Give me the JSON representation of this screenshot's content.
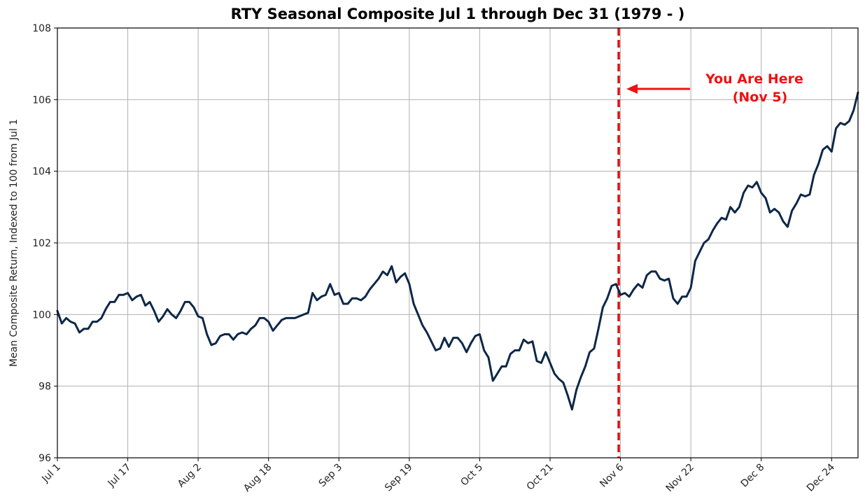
{
  "chart_data": {
    "type": "line",
    "title": "RTY Seasonal Composite Jul 1 through Dec 31 (1979 - )",
    "xlabel": "",
    "ylabel": "Mean Composite Return, Indexed to 100 from Jul 1",
    "ylim": [
      96,
      108
    ],
    "xlim": [
      0,
      182
    ],
    "grid": true,
    "x_ticks": [
      {
        "day": 0,
        "label": "Jul 1"
      },
      {
        "day": 16,
        "label": "Jul 17"
      },
      {
        "day": 32,
        "label": "Aug 2"
      },
      {
        "day": 48,
        "label": "Aug 18"
      },
      {
        "day": 64,
        "label": "Sep 3"
      },
      {
        "day": 80,
        "label": "Sep 19"
      },
      {
        "day": 96,
        "label": "Oct 5"
      },
      {
        "day": 112,
        "label": "Oct 21"
      },
      {
        "day": 128,
        "label": "Nov 6"
      },
      {
        "day": 144,
        "label": "Nov 22"
      },
      {
        "day": 160,
        "label": "Dec 8"
      },
      {
        "day": 176,
        "label": "Dec 24"
      }
    ],
    "y_ticks": [
      96,
      98,
      100,
      102,
      104,
      106,
      108
    ],
    "series": [
      {
        "name": "RTY Seasonal Composite",
        "color": "#0d2747",
        "x": [
          0,
          1,
          2,
          3,
          4,
          5,
          6,
          7,
          8,
          9,
          10,
          11,
          12,
          13,
          14,
          15,
          16,
          17,
          18,
          19,
          20,
          21,
          22,
          23,
          24,
          25,
          26,
          27,
          28,
          29,
          30,
          31,
          32,
          33,
          34,
          35,
          36,
          37,
          38,
          39,
          40,
          41,
          42,
          43,
          44,
          45,
          46,
          47,
          48,
          49,
          50,
          51,
          52,
          53,
          54,
          55,
          56,
          57,
          58,
          59,
          60,
          61,
          62,
          63,
          64,
          65,
          66,
          67,
          68,
          69,
          70,
          71,
          72,
          73,
          74,
          75,
          76,
          77,
          78,
          79,
          80,
          81,
          82,
          83,
          84,
          85,
          86,
          87,
          88,
          89,
          90,
          91,
          92,
          93,
          94,
          95,
          96,
          97,
          98,
          99,
          100,
          101,
          102,
          103,
          104,
          105,
          106,
          107,
          108,
          109,
          110,
          111,
          112,
          113,
          114,
          115,
          116,
          117,
          118,
          119,
          120,
          121,
          122,
          123,
          124,
          125,
          126,
          127,
          128,
          129,
          130,
          131,
          132,
          133,
          134,
          135,
          136,
          137,
          138,
          139,
          140,
          141,
          142,
          143,
          144,
          145,
          146,
          147,
          148,
          149,
          150,
          151,
          152,
          153,
          154,
          155,
          156,
          157,
          158,
          159,
          160,
          161,
          162,
          163,
          164,
          165,
          166,
          167,
          168,
          169,
          170,
          171,
          172,
          173,
          174,
          175,
          176,
          177,
          178,
          179,
          180,
          181,
          182
        ],
        "values": [
          100.1,
          99.75,
          99.9,
          99.8,
          99.75,
          99.5,
          99.6,
          99.6,
          99.8,
          99.8,
          99.9,
          100.15,
          100.35,
          100.35,
          100.55,
          100.55,
          100.6,
          100.4,
          100.5,
          100.55,
          100.25,
          100.35,
          100.1,
          99.8,
          99.95,
          100.15,
          100.0,
          99.9,
          100.1,
          100.35,
          100.35,
          100.2,
          99.95,
          99.9,
          99.45,
          99.15,
          99.2,
          99.4,
          99.45,
          99.45,
          99.3,
          99.45,
          99.5,
          99.45,
          99.6,
          99.7,
          99.9,
          99.9,
          99.8,
          99.55,
          99.7,
          99.85,
          99.9,
          99.9,
          99.9,
          99.95,
          100.0,
          100.05,
          100.6,
          100.4,
          100.5,
          100.55,
          100.85,
          100.55,
          100.6,
          100.3,
          100.3,
          100.45,
          100.45,
          100.4,
          100.5,
          100.7,
          100.85,
          101.0,
          101.2,
          101.1,
          101.35,
          100.9,
          101.05,
          101.15,
          100.85,
          100.3,
          100.0,
          99.7,
          99.5,
          99.25,
          99.0,
          99.05,
          99.35,
          99.1,
          99.35,
          99.35,
          99.2,
          98.95,
          99.2,
          99.4,
          99.45,
          99.0,
          98.8,
          98.15,
          98.35,
          98.55,
          98.55,
          98.9,
          99.0,
          99.0,
          99.3,
          99.2,
          99.25,
          98.7,
          98.65,
          98.95,
          98.65,
          98.35,
          98.2,
          98.1,
          97.75,
          97.35,
          97.9,
          98.25,
          98.55,
          98.95,
          99.05,
          99.6,
          100.2,
          100.45,
          100.8,
          100.85,
          100.55,
          100.6,
          100.5,
          100.7,
          100.85,
          100.75,
          101.1,
          101.2,
          101.2,
          101.0,
          100.95,
          101.0,
          100.45,
          100.3,
          100.5,
          100.5,
          100.75,
          101.5,
          101.75,
          102.0,
          102.1,
          102.35,
          102.55,
          102.7,
          102.65,
          103.0,
          102.85,
          103.0,
          103.4,
          103.6,
          103.55,
          103.7,
          103.4,
          103.25,
          102.85,
          102.95,
          102.85,
          102.6,
          102.45,
          102.9,
          103.1,
          103.35,
          103.3,
          103.35,
          103.9,
          104.2,
          104.6,
          104.7,
          104.55,
          105.2,
          105.35,
          105.3,
          105.4,
          105.7,
          106.2
        ]
      }
    ],
    "annotations": [
      {
        "type": "vline",
        "day": 127.6,
        "color": "#e01010",
        "style": "dashed"
      },
      {
        "type": "arrow",
        "text_line1": "You Are Here",
        "text_line2": "(Nov 5)",
        "color": "#ee1111",
        "arrow_y": 106.3
      }
    ]
  }
}
